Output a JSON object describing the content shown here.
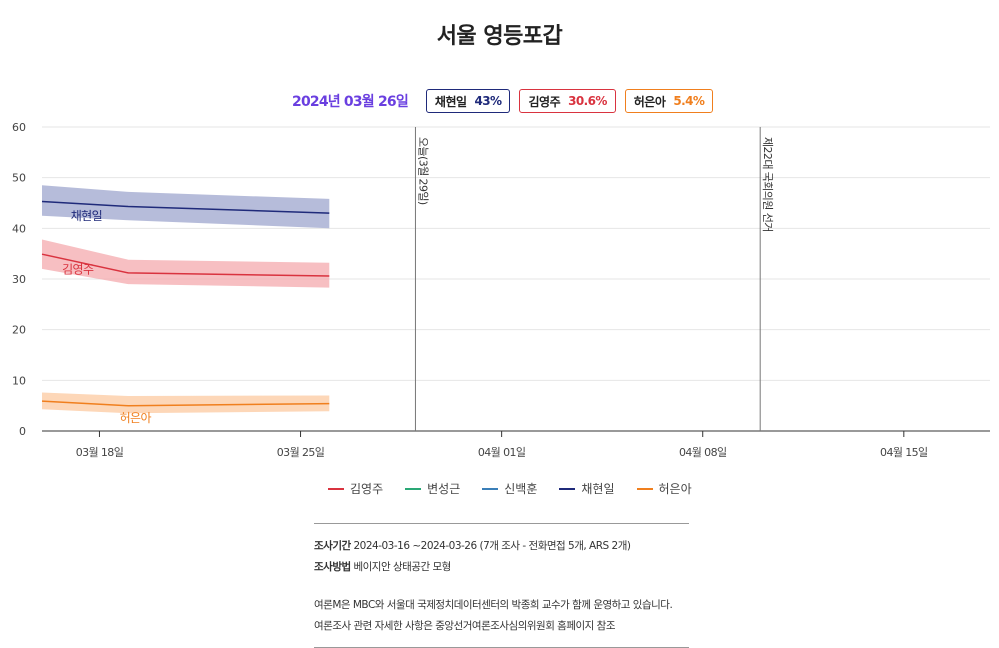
{
  "page_title": "서울 영등포갑",
  "header": {
    "date": "2024년 03월 26일",
    "badges": [
      {
        "name": "채현일",
        "pct": "43%",
        "color": "#1f2a7a"
      },
      {
        "name": "김영주",
        "pct": "30.6%",
        "color": "#d9333f"
      },
      {
        "name": "허은아",
        "pct": "5.4%",
        "color": "#f07f1e"
      }
    ]
  },
  "chart_data": {
    "type": "line",
    "x_axis": {
      "min": "2024-03-16",
      "max": "2024-04-18",
      "ticks": [
        {
          "date": "2024-03-18",
          "label": "03월 18일"
        },
        {
          "date": "2024-03-25",
          "label": "03월 25일"
        },
        {
          "date": "2024-04-01",
          "label": "04월 01일"
        },
        {
          "date": "2024-04-08",
          "label": "04월 08일"
        },
        {
          "date": "2024-04-15",
          "label": "04월 15일"
        }
      ]
    },
    "y_axis": {
      "min": 0,
      "max": 60,
      "ticks": [
        0,
        10,
        20,
        30,
        40,
        50,
        60
      ]
    },
    "grid": "horizontal",
    "reference_lines": [
      {
        "date": "2024-03-29",
        "label": "오늘(3월 29일)"
      },
      {
        "date": "2024-04-10",
        "label": "제22대 국회의원 선거"
      }
    ],
    "series": [
      {
        "name": "채현일",
        "color": "#1f2a7a",
        "band_color": "#9ea5ce",
        "dates": [
          "2024-03-16",
          "2024-03-19",
          "2024-03-26"
        ],
        "values": [
          45.3,
          44.3,
          43.0
        ],
        "upper": [
          48.5,
          47.2,
          45.8
        ],
        "lower": [
          42.5,
          41.6,
          40.0
        ],
        "label_date": "2024-03-17",
        "label_value": 42.4
      },
      {
        "name": "김영주",
        "color": "#d9333f",
        "band_color": "#f4a9ae",
        "dates": [
          "2024-03-16",
          "2024-03-19",
          "2024-03-26"
        ],
        "values": [
          34.9,
          31.2,
          30.6
        ],
        "upper": [
          37.8,
          33.8,
          33.2
        ],
        "lower": [
          32.0,
          29.0,
          28.3
        ],
        "label_date": "2024-03-16.7",
        "label_value": 31.9
      },
      {
        "name": "허은아",
        "color": "#f07f1e",
        "band_color": "#fcc9a0",
        "dates": [
          "2024-03-16",
          "2024-03-19",
          "2024-03-26"
        ],
        "values": [
          5.9,
          5.0,
          5.4
        ],
        "upper": [
          7.6,
          6.9,
          7.0
        ],
        "lower": [
          4.3,
          3.5,
          3.9
        ],
        "label_date": "2024-03-18.7",
        "label_value": 2.6
      }
    ]
  },
  "legend": [
    {
      "name": "김영주",
      "color": "#d9333f"
    },
    {
      "name": "변성근",
      "color": "#2aa876"
    },
    {
      "name": "신백훈",
      "color": "#3a7fb8"
    },
    {
      "name": "채현일",
      "color": "#1f2a7a"
    },
    {
      "name": "허은아",
      "color": "#f07f1e"
    }
  ],
  "notes": {
    "period_label": "조사기간",
    "period_value": "2024-03-16 ~2024-03-26 (7개 조사 - 전화면접 5개, ARS 2개)",
    "method_label": "조사방법",
    "method_value": "베이지안 상태공간 모형",
    "line1": "여론M은 MBC와 서울대 국제정치데이터센터의 박종희 교수가 함께 운영하고 있습니다.",
    "line2": "여론조사 관련 자세한 사항은 중앙선거여론조사심의위원회 홈페이지 참조"
  }
}
